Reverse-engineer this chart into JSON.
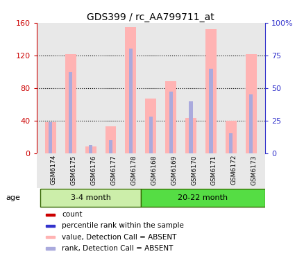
{
  "title": "GDS399 / rc_AA799711_at",
  "samples": [
    "GSM6174",
    "GSM6175",
    "GSM6176",
    "GSM6177",
    "GSM6178",
    "GSM6168",
    "GSM6169",
    "GSM6170",
    "GSM6171",
    "GSM6172",
    "GSM6173"
  ],
  "groups": [
    "3-4 month",
    "20-22 month"
  ],
  "value_absent": [
    38,
    122,
    8,
    33,
    155,
    67,
    88,
    43,
    152,
    40,
    122
  ],
  "rank_absent": [
    24,
    62,
    6,
    10,
    80,
    28,
    47,
    40,
    65,
    15,
    45
  ],
  "left_ylim": [
    0,
    160
  ],
  "left_yticks": [
    0,
    40,
    80,
    120,
    160
  ],
  "right_yticks": [
    0,
    25,
    50,
    75,
    100
  ],
  "right_yticklabels": [
    "0",
    "25",
    "50",
    "75",
    "100%"
  ],
  "color_count": "#cc0000",
  "color_rank": "#3333cc",
  "color_absent_value": "#ffb3b3",
  "color_absent_rank": "#aaaadd",
  "background_color": "#ffffff",
  "plot_bg": "#e8e8e8",
  "group_color_1": "#cceeaa",
  "group_color_2": "#55dd44",
  "age_label": "age"
}
